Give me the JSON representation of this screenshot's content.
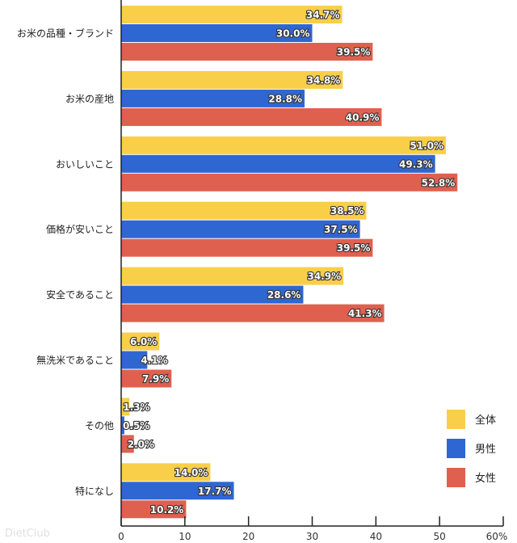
{
  "chart_data": {
    "type": "bar",
    "orientation": "horizontal",
    "categories": [
      "お米の品種・ブランド",
      "お米の産地",
      "おいしいこと",
      "価格が安いこと",
      "安全であること",
      "無洗米であること",
      "その他",
      "特になし"
    ],
    "series": [
      {
        "name": "全体",
        "color": "#f9cf4a",
        "values": [
          34.7,
          34.8,
          51.0,
          38.5,
          34.9,
          6.0,
          1.3,
          14.0
        ]
      },
      {
        "name": "男性",
        "color": "#2f67d2",
        "values": [
          30.0,
          28.8,
          49.3,
          37.5,
          28.6,
          4.1,
          0.5,
          17.7
        ]
      },
      {
        "name": "女性",
        "color": "#e0604f",
        "values": [
          39.5,
          40.9,
          52.8,
          39.5,
          41.3,
          7.9,
          2.0,
          10.2
        ]
      }
    ],
    "xlim": [
      0,
      60
    ],
    "xticks": [
      "0",
      "10",
      "20",
      "30",
      "40",
      "50",
      "60%"
    ],
    "legend_position": "bottom-right",
    "grid": false
  },
  "watermark": "DietClub"
}
